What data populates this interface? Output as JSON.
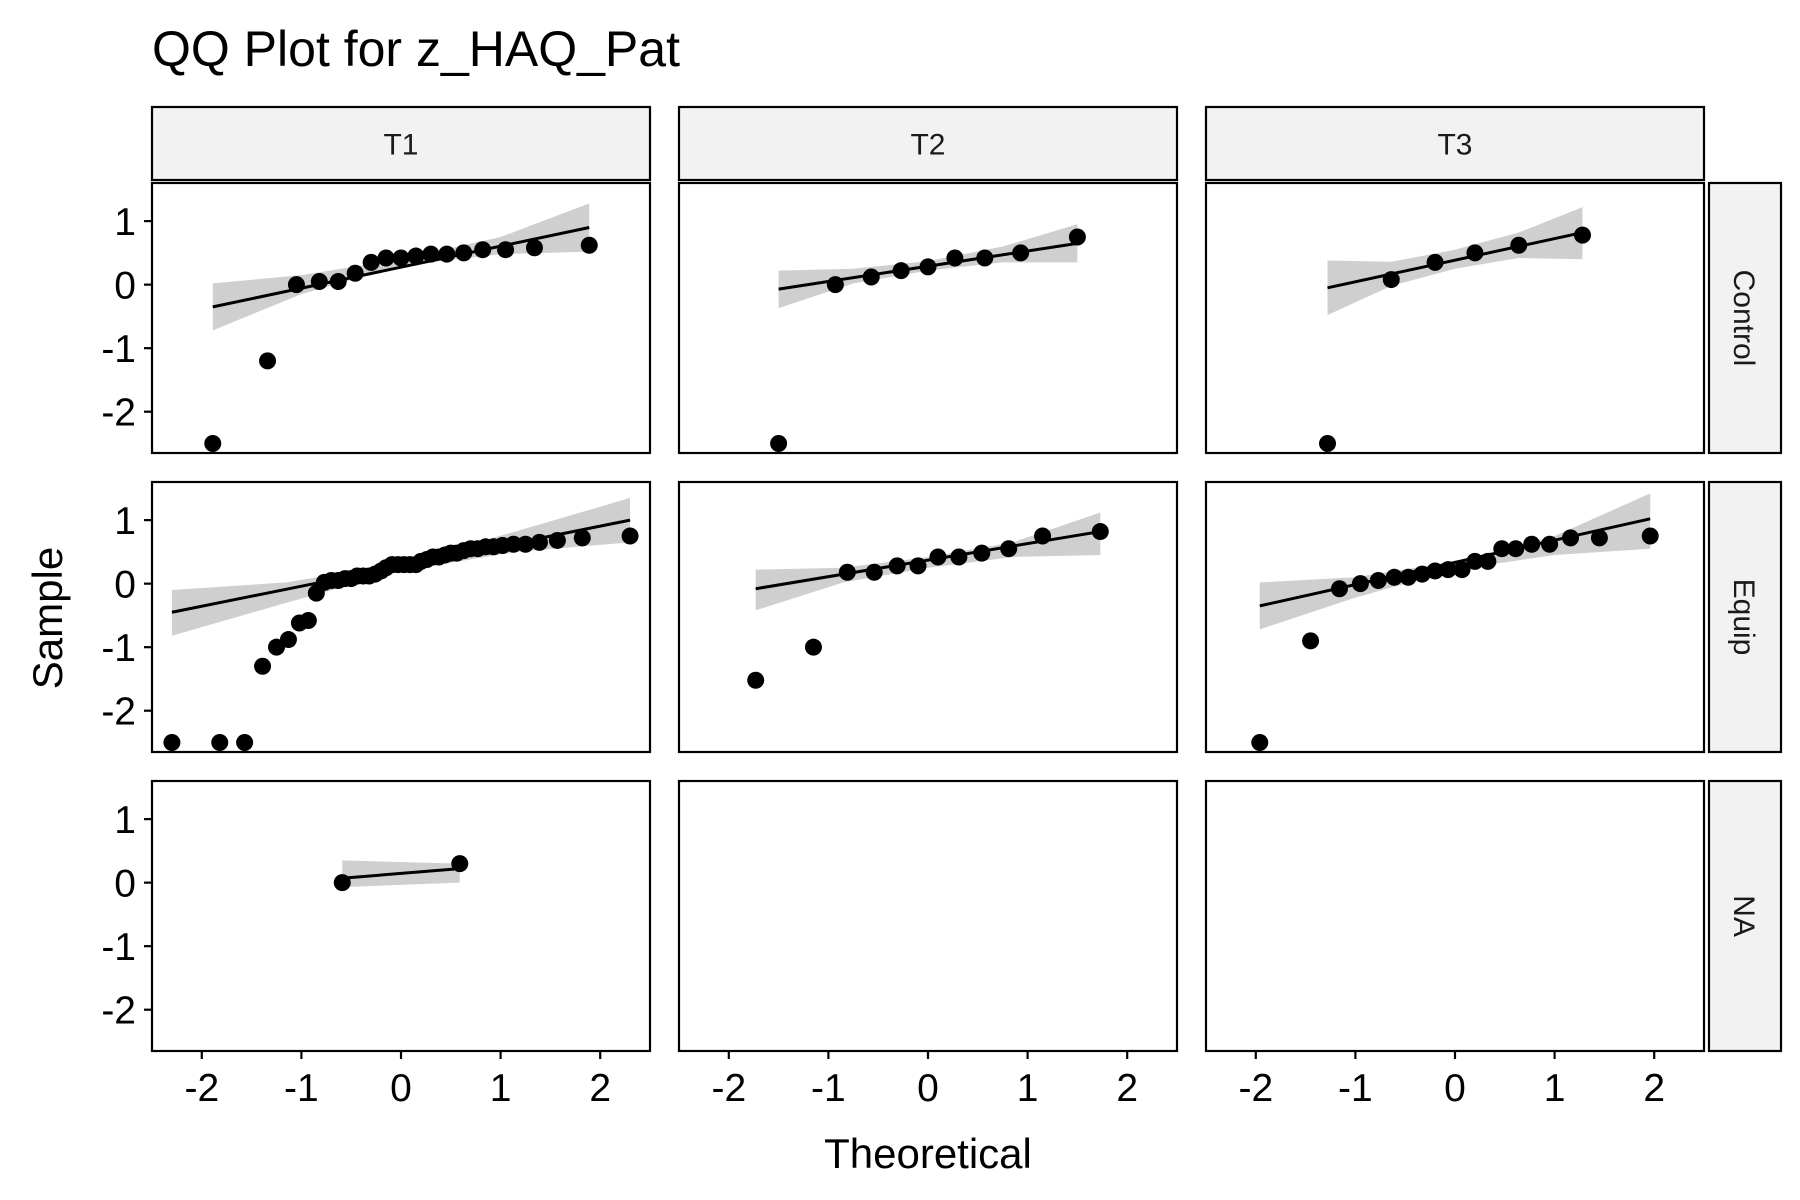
{
  "chart_data": {
    "type": "scatter",
    "title": "QQ Plot for z_HAQ_Pat",
    "xlabel": "Theoretical",
    "ylabel": "Sample",
    "xlim": [
      -2.5,
      2.5
    ],
    "ylim": [
      -2.65,
      1.6
    ],
    "x_ticks": [
      -2,
      -1,
      0,
      1,
      2
    ],
    "x_tick_labels": [
      "-2",
      "-1",
      "0",
      "1",
      "2"
    ],
    "y_ticks": [
      -2,
      -1,
      0,
      1
    ],
    "y_tick_labels": [
      "-2",
      "-1",
      "0",
      "1"
    ],
    "columns": [
      "T1",
      "T2",
      "T3"
    ],
    "rows": [
      "Control",
      "Equip",
      "NA"
    ],
    "grid": false,
    "legend": "none",
    "panels": [
      {
        "col": "T1",
        "row": "Control",
        "points": [
          [
            -1.89,
            -2.5
          ],
          [
            -1.34,
            -1.2
          ],
          [
            -1.05,
            0.0
          ],
          [
            -0.82,
            0.05
          ],
          [
            -0.63,
            0.05
          ],
          [
            -0.46,
            0.18
          ],
          [
            -0.3,
            0.35
          ],
          [
            -0.15,
            0.42
          ],
          [
            0.0,
            0.42
          ],
          [
            0.15,
            0.45
          ],
          [
            0.3,
            0.48
          ],
          [
            0.46,
            0.48
          ],
          [
            0.63,
            0.5
          ],
          [
            0.82,
            0.55
          ],
          [
            1.05,
            0.55
          ],
          [
            1.34,
            0.58
          ],
          [
            1.89,
            0.62
          ]
        ],
        "line": [
          [
            -1.89,
            -0.35
          ],
          [
            1.89,
            0.9
          ]
        ],
        "band_lower": [
          [
            -1.89,
            -0.72
          ],
          [
            -1.0,
            -0.15
          ],
          [
            0.0,
            0.3
          ],
          [
            1.0,
            0.48
          ],
          [
            1.89,
            0.52
          ]
        ],
        "band_upper": [
          [
            -1.89,
            0.02
          ],
          [
            -1.0,
            0.15
          ],
          [
            0.0,
            0.4
          ],
          [
            1.0,
            0.75
          ],
          [
            1.89,
            1.28
          ]
        ]
      },
      {
        "col": "T2",
        "row": "Control",
        "points": [
          [
            -1.5,
            -2.5
          ],
          [
            -0.93,
            0.0
          ],
          [
            -0.57,
            0.12
          ],
          [
            -0.27,
            0.22
          ],
          [
            0.0,
            0.28
          ],
          [
            0.27,
            0.42
          ],
          [
            0.57,
            0.42
          ],
          [
            0.93,
            0.5
          ],
          [
            1.5,
            0.75
          ]
        ],
        "line": [
          [
            -1.5,
            -0.07
          ],
          [
            1.5,
            0.65
          ]
        ],
        "band_lower": [
          [
            -1.5,
            -0.37
          ],
          [
            -0.75,
            0.02
          ],
          [
            0.0,
            0.22
          ],
          [
            0.75,
            0.35
          ],
          [
            1.5,
            0.35
          ]
        ],
        "band_upper": [
          [
            -1.5,
            0.22
          ],
          [
            -0.75,
            0.25
          ],
          [
            0.0,
            0.37
          ],
          [
            0.75,
            0.6
          ],
          [
            1.5,
            0.95
          ]
        ]
      },
      {
        "col": "T3",
        "row": "Control",
        "points": [
          [
            -1.28,
            -2.5
          ],
          [
            -0.64,
            0.08
          ],
          [
            -0.2,
            0.35
          ],
          [
            0.2,
            0.5
          ],
          [
            0.64,
            0.62
          ],
          [
            1.28,
            0.78
          ]
        ],
        "line": [
          [
            -1.28,
            -0.05
          ],
          [
            1.28,
            0.82
          ]
        ],
        "band_lower": [
          [
            -1.28,
            -0.48
          ],
          [
            -0.64,
            -0.02
          ],
          [
            0.0,
            0.25
          ],
          [
            0.64,
            0.42
          ],
          [
            1.28,
            0.4
          ]
        ],
        "band_upper": [
          [
            -1.28,
            0.38
          ],
          [
            -0.64,
            0.36
          ],
          [
            0.0,
            0.55
          ],
          [
            0.64,
            0.82
          ],
          [
            1.28,
            1.22
          ]
        ]
      },
      {
        "col": "T1",
        "row": "Equip",
        "points": [
          [
            -2.3,
            -2.5
          ],
          [
            -1.82,
            -2.5
          ],
          [
            -1.57,
            -2.5
          ],
          [
            -1.39,
            -1.3
          ],
          [
            -1.25,
            -1.0
          ],
          [
            -1.13,
            -0.88
          ],
          [
            -1.02,
            -0.62
          ],
          [
            -0.93,
            -0.58
          ],
          [
            -0.85,
            -0.15
          ],
          [
            -0.77,
            0.02
          ],
          [
            -0.7,
            0.05
          ],
          [
            -0.63,
            0.05
          ],
          [
            -0.56,
            0.08
          ],
          [
            -0.5,
            0.08
          ],
          [
            -0.44,
            0.12
          ],
          [
            -0.38,
            0.12
          ],
          [
            -0.32,
            0.12
          ],
          [
            -0.26,
            0.15
          ],
          [
            -0.2,
            0.2
          ],
          [
            -0.15,
            0.25
          ],
          [
            -0.09,
            0.3
          ],
          [
            -0.03,
            0.3
          ],
          [
            0.03,
            0.3
          ],
          [
            0.09,
            0.3
          ],
          [
            0.15,
            0.3
          ],
          [
            0.2,
            0.35
          ],
          [
            0.26,
            0.38
          ],
          [
            0.32,
            0.42
          ],
          [
            0.38,
            0.42
          ],
          [
            0.44,
            0.45
          ],
          [
            0.5,
            0.48
          ],
          [
            0.56,
            0.48
          ],
          [
            0.63,
            0.52
          ],
          [
            0.7,
            0.55
          ],
          [
            0.77,
            0.55
          ],
          [
            0.85,
            0.58
          ],
          [
            0.93,
            0.58
          ],
          [
            1.02,
            0.6
          ],
          [
            1.13,
            0.62
          ],
          [
            1.25,
            0.62
          ],
          [
            1.39,
            0.65
          ],
          [
            1.57,
            0.68
          ],
          [
            1.82,
            0.72
          ],
          [
            2.3,
            0.75
          ]
        ],
        "line": [
          [
            -2.3,
            -0.45
          ],
          [
            2.3,
            1.0
          ]
        ],
        "band_lower": [
          [
            -2.3,
            -0.82
          ],
          [
            -1.15,
            -0.3
          ],
          [
            0.0,
            0.2
          ],
          [
            1.15,
            0.5
          ],
          [
            2.3,
            0.65
          ]
        ],
        "band_upper": [
          [
            -2.3,
            -0.1
          ],
          [
            -1.15,
            0.02
          ],
          [
            0.0,
            0.32
          ],
          [
            1.15,
            0.82
          ],
          [
            2.3,
            1.35
          ]
        ]
      },
      {
        "col": "T2",
        "row": "Equip",
        "points": [
          [
            -1.73,
            -1.52
          ],
          [
            -1.15,
            -1.0
          ],
          [
            -0.81,
            0.18
          ],
          [
            -0.54,
            0.18
          ],
          [
            -0.31,
            0.28
          ],
          [
            -0.1,
            0.28
          ],
          [
            0.1,
            0.42
          ],
          [
            0.31,
            0.42
          ],
          [
            0.54,
            0.48
          ],
          [
            0.81,
            0.55
          ],
          [
            1.15,
            0.75
          ],
          [
            1.73,
            0.82
          ]
        ],
        "line": [
          [
            -1.73,
            -0.08
          ],
          [
            1.73,
            0.82
          ]
        ],
        "band_lower": [
          [
            -1.73,
            -0.42
          ],
          [
            -0.85,
            0.02
          ],
          [
            0.0,
            0.25
          ],
          [
            0.85,
            0.42
          ],
          [
            1.73,
            0.45
          ]
        ],
        "band_upper": [
          [
            -1.73,
            0.22
          ],
          [
            -0.85,
            0.25
          ],
          [
            0.0,
            0.42
          ],
          [
            0.85,
            0.65
          ],
          [
            1.73,
            1.12
          ]
        ]
      },
      {
        "col": "T3",
        "row": "Equip",
        "points": [
          [
            -1.96,
            -2.5
          ],
          [
            -1.45,
            -0.9
          ],
          [
            -1.16,
            -0.08
          ],
          [
            -0.95,
            0.0
          ],
          [
            -0.77,
            0.05
          ],
          [
            -0.61,
            0.1
          ],
          [
            -0.47,
            0.1
          ],
          [
            -0.33,
            0.15
          ],
          [
            -0.2,
            0.2
          ],
          [
            -0.07,
            0.22
          ],
          [
            0.07,
            0.22
          ],
          [
            0.2,
            0.35
          ],
          [
            0.33,
            0.35
          ],
          [
            0.47,
            0.55
          ],
          [
            0.61,
            0.55
          ],
          [
            0.77,
            0.62
          ],
          [
            0.95,
            0.62
          ],
          [
            1.16,
            0.72
          ],
          [
            1.45,
            0.72
          ],
          [
            1.96,
            0.75
          ]
        ],
        "line": [
          [
            -1.96,
            -0.35
          ],
          [
            1.96,
            1.02
          ]
        ],
        "band_lower": [
          [
            -1.96,
            -0.72
          ],
          [
            -1.0,
            -0.22
          ],
          [
            0.0,
            0.22
          ],
          [
            1.0,
            0.45
          ],
          [
            1.96,
            0.55
          ]
        ],
        "band_upper": [
          [
            -1.96,
            0.02
          ],
          [
            -1.0,
            0.1
          ],
          [
            0.0,
            0.35
          ],
          [
            1.0,
            0.75
          ],
          [
            1.96,
            1.42
          ]
        ]
      },
      {
        "col": "T1",
        "row": "NA",
        "points": [
          [
            -0.59,
            0.0
          ],
          [
            0.59,
            0.3
          ]
        ],
        "line": [
          [
            -0.59,
            0.07
          ],
          [
            0.59,
            0.22
          ]
        ],
        "band_lower": [
          [
            -0.59,
            -0.07
          ],
          [
            0.59,
            0.0
          ]
        ],
        "band_upper": [
          [
            -0.59,
            0.35
          ],
          [
            0.59,
            0.3
          ]
        ]
      }
    ]
  }
}
